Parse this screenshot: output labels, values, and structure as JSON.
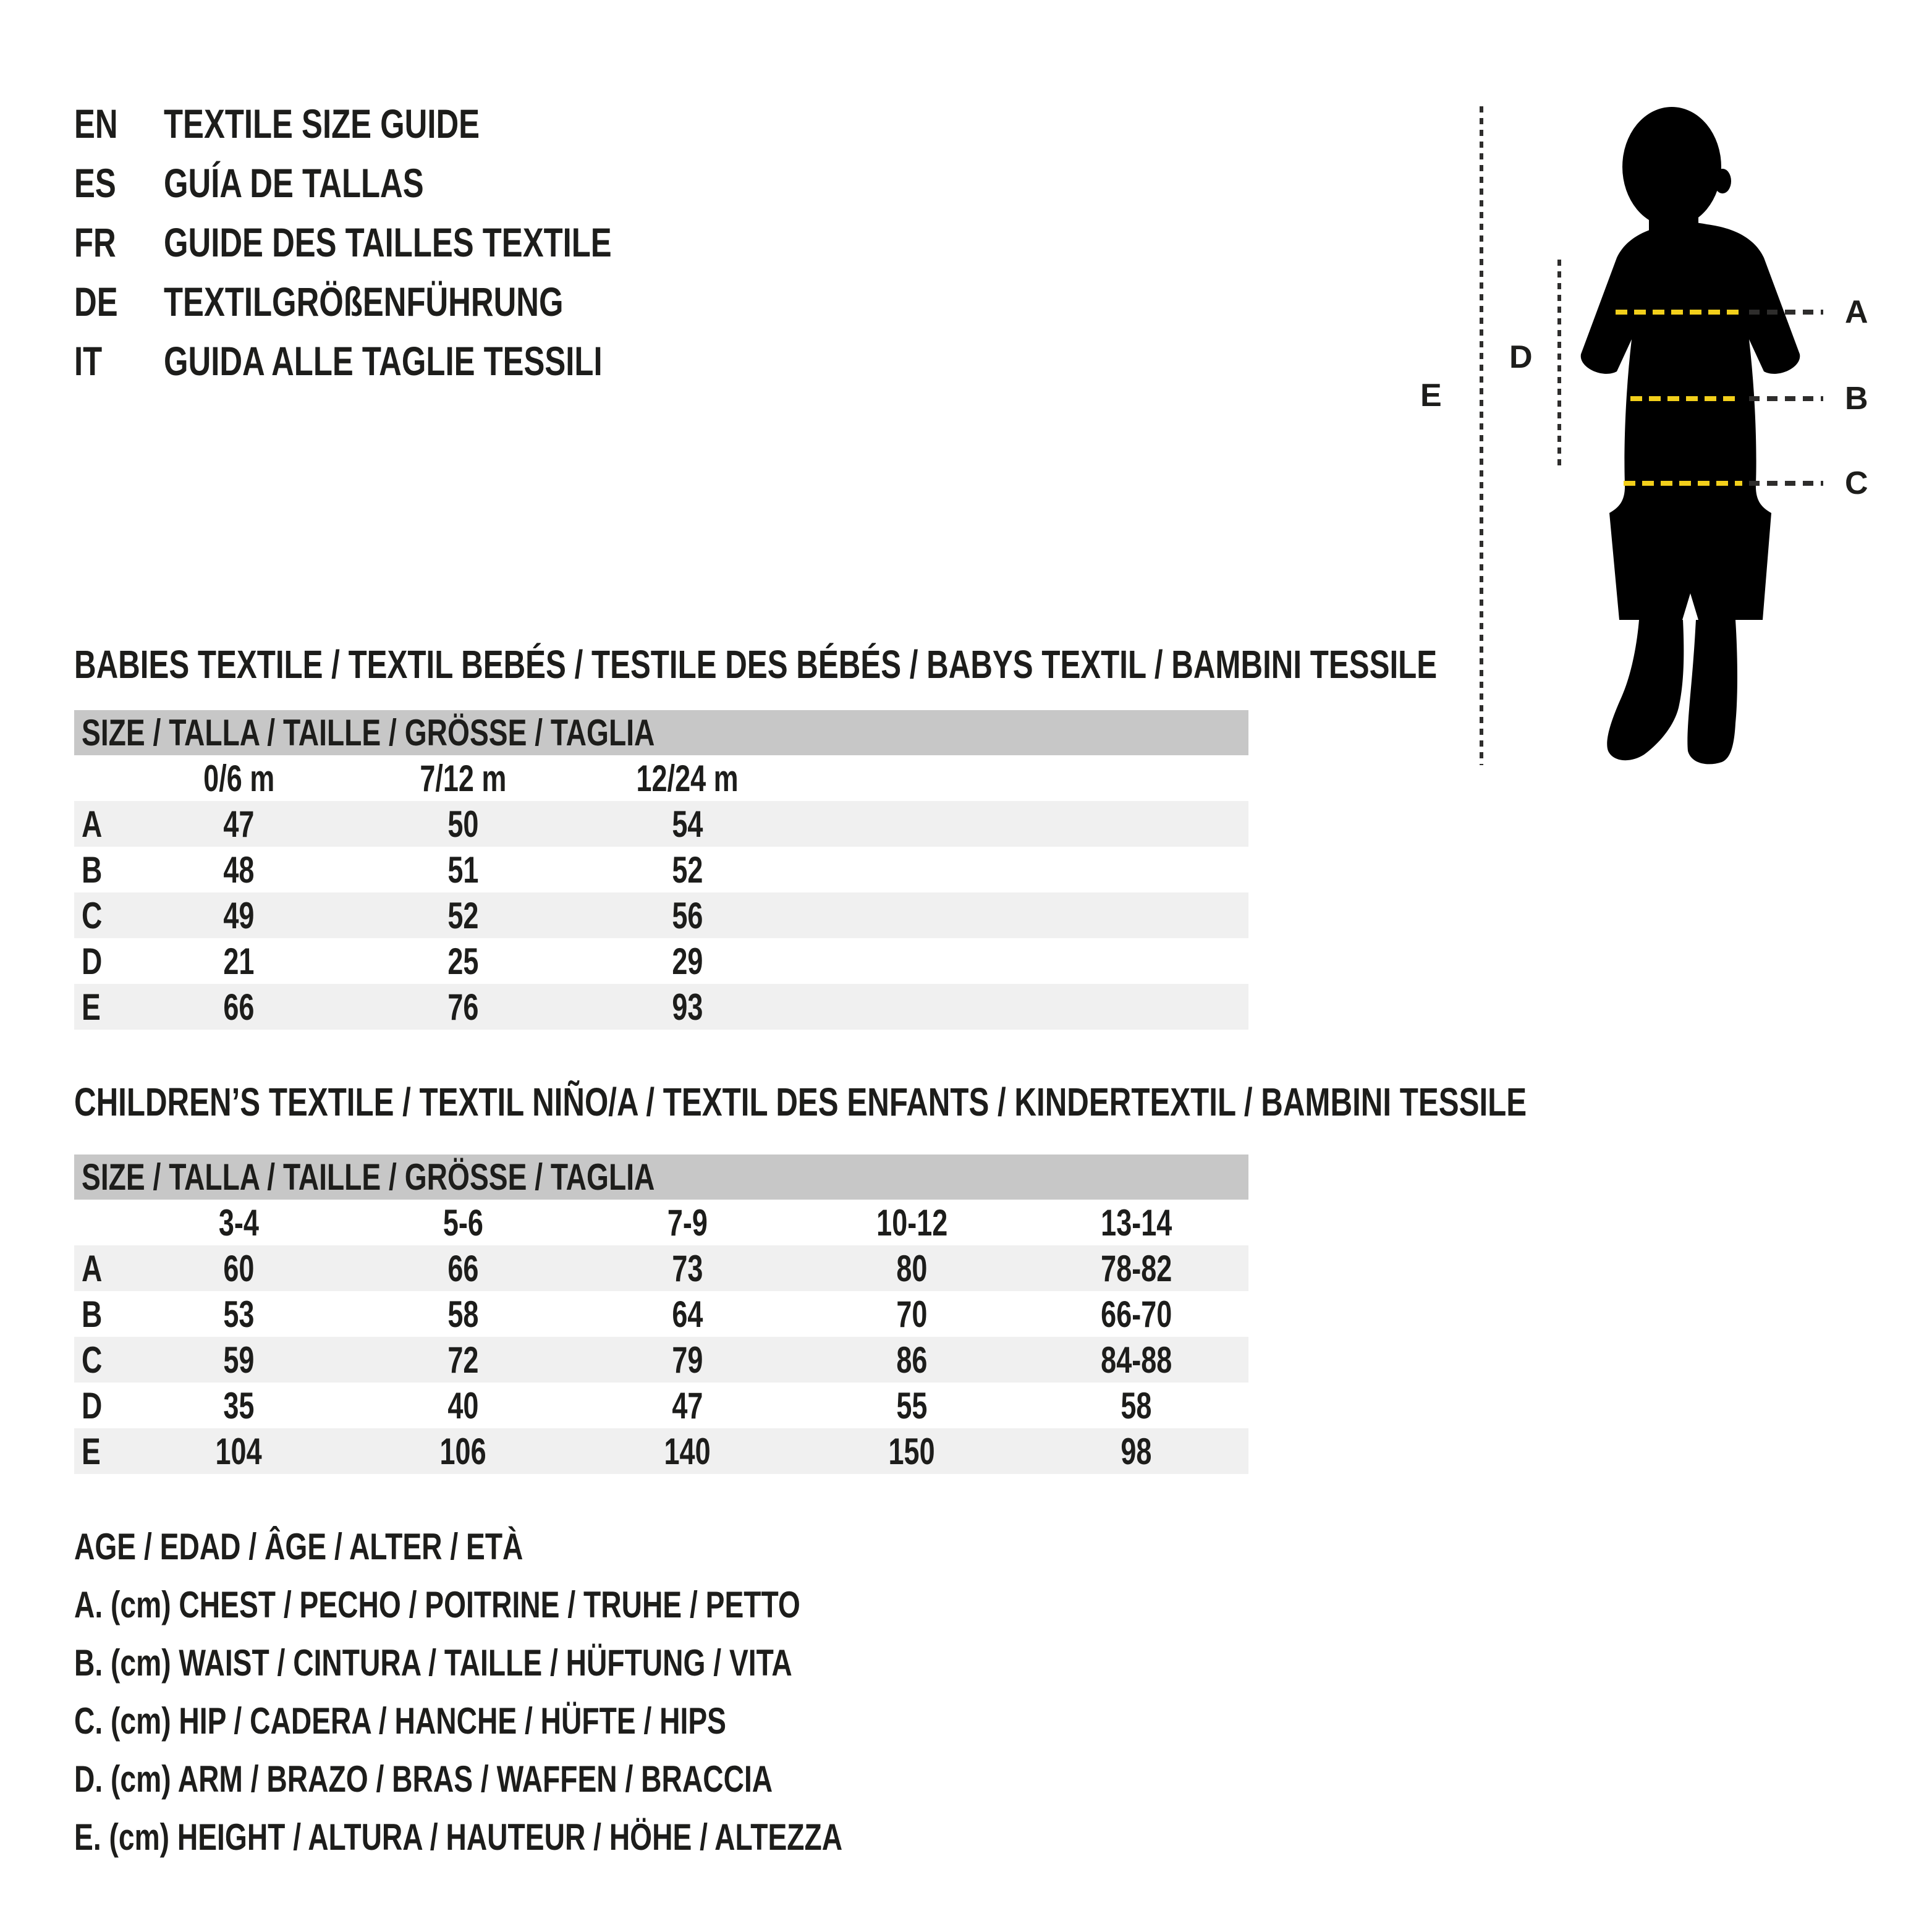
{
  "page": {
    "background": "#ffffff",
    "text_color": "#1d1d1b"
  },
  "header": {
    "languages": [
      {
        "code": "EN",
        "title": "TEXTILE SIZE GUIDE"
      },
      {
        "code": "ES",
        "title": "GUÍA DE TALLAS"
      },
      {
        "code": "FR",
        "title": "GUIDE DES TAILLES TEXTILE"
      },
      {
        "code": "DE",
        "title": "TEXTILGRÖßENFÜHRUNG"
      },
      {
        "code": "IT",
        "title": "GUIDA ALLE TAGLIE TESSILI"
      }
    ]
  },
  "figure": {
    "measure_labels": [
      "A",
      "B",
      "C"
    ],
    "side_labels": {
      "arm": "D",
      "height": "E"
    },
    "colors": {
      "silhouette": "#000000",
      "tape_yellow": "#f2cf1b",
      "dash_dark": "#2e2d2c"
    }
  },
  "babies": {
    "title": "BABIES TEXTILE / TEXTIL BEBÉS / TESTILE DES BÉBÉS / BABYS TEXTIL / BAMBINI TESSILE",
    "size_header": "SIZE / TALLA / TAILLE / GRÖSSE / TAGLIA",
    "columns": [
      "0/6 m",
      "7/12 m",
      "12/24 m"
    ],
    "rows": [
      {
        "label": "A",
        "values": [
          "47",
          "50",
          "54"
        ]
      },
      {
        "label": "B",
        "values": [
          "48",
          "51",
          "52"
        ]
      },
      {
        "label": "C",
        "values": [
          "49",
          "52",
          "56"
        ]
      },
      {
        "label": "D",
        "values": [
          "21",
          "25",
          "29"
        ]
      },
      {
        "label": "E",
        "values": [
          "66",
          "76",
          "93"
        ]
      }
    ]
  },
  "children": {
    "title": "CHILDREN’S TEXTILE / TEXTIL NIÑO/A / TEXTIL DES ENFANTS / KINDERTEXTIL / BAMBINI TESSILE",
    "size_header": "SIZE / TALLA / TAILLE / GRÖSSE / TAGLIA",
    "columns": [
      "3-4",
      "5-6",
      "7-9",
      "10-12",
      "13-14"
    ],
    "rows": [
      {
        "label": "A",
        "values": [
          "60",
          "66",
          "73",
          "80",
          "78-82"
        ]
      },
      {
        "label": "B",
        "values": [
          "53",
          "58",
          "64",
          "70",
          "66-70"
        ]
      },
      {
        "label": "C",
        "values": [
          "59",
          "72",
          "79",
          "86",
          "84-88"
        ]
      },
      {
        "label": "D",
        "values": [
          "35",
          "40",
          "47",
          "55",
          "58"
        ]
      },
      {
        "label": "E",
        "values": [
          "104",
          "106",
          "140",
          "150",
          "98"
        ]
      }
    ]
  },
  "legend": {
    "lines": [
      "AGE / EDAD / ÂGE / ALTER / ETÀ",
      "A. (cm) CHEST / PECHO / POITRINE / TRUHE / PETTO",
      "B. (cm) WAIST / CINTURA / TAILLE / HÜFTUNG / VITA",
      "C. (cm) HIP / CADERA / HANCHE / HÜFTE / HIPS",
      "D. (cm) ARM / BRAZO / BRAS / WAFFEN / BRACCIA",
      "E. (cm) HEIGHT / ALTURA / HAUTEUR / HÖHE / ALTEZZA"
    ]
  }
}
